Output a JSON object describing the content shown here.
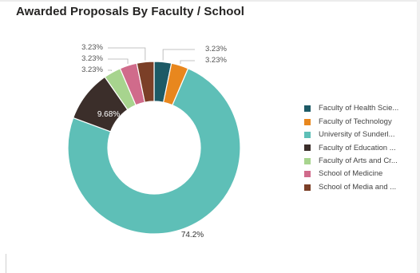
{
  "chart_data": {
    "type": "pie",
    "variant": "donut",
    "title": "Awarded Proposals By Faculty / School",
    "legend_position": "right",
    "slices": [
      {
        "label": "Faculty of Health Scie...",
        "value": 3.23,
        "value_label": "3.23%",
        "color": "#1d5a66"
      },
      {
        "label": "Faculty of Technology",
        "value": 3.23,
        "value_label": "3.23%",
        "color": "#e8871e"
      },
      {
        "label": "University of Sunderl...",
        "value": 74.2,
        "value_label": "74.2%",
        "color": "#5ebfb7"
      },
      {
        "label": "Faculty of Education ...",
        "value": 9.68,
        "value_label": "9.68%",
        "color": "#3b2e2a"
      },
      {
        "label": "Faculty of Arts and Cr...",
        "value": 3.23,
        "value_label": "3.23%",
        "color": "#a7d48e"
      },
      {
        "label": "School of Medicine",
        "value": 3.23,
        "value_label": "3.23%",
        "color": "#d06b8b"
      },
      {
        "label": "School of Media and ...",
        "value": 3.23,
        "value_label": "3.23%",
        "color": "#7b3f27"
      }
    ]
  }
}
